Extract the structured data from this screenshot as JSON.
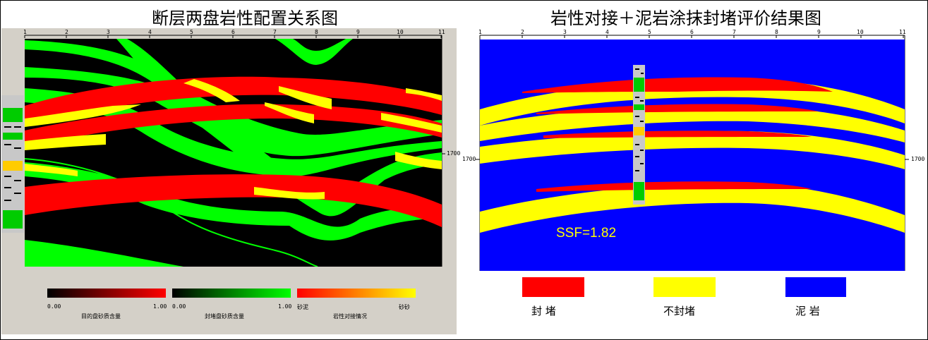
{
  "left_panel": {
    "title": "断层两盘岩性配置关系图",
    "x_ticks": [
      "1",
      "2",
      "3",
      "4",
      "5",
      "6",
      "7",
      "8",
      "9",
      "10",
      "11"
    ],
    "depth_label": "1700",
    "colorbars": [
      {
        "min_label": "0.00",
        "max_label": "1.00",
        "title": "目的盘砂质含量",
        "colors": [
          "#000000",
          "#ff0000"
        ]
      },
      {
        "min_label": "0.00",
        "max_label": "1.00",
        "title": "封堵盘砂质含量",
        "colors": [
          "#000000",
          "#00ff00"
        ]
      },
      {
        "min_label": "砂泥",
        "max_label": "砂砂",
        "title": "岩性对接情况",
        "colors": [
          "#ff0000",
          "#ffff00"
        ]
      }
    ]
  },
  "right_panel": {
    "title": "岩性对接＋泥岩涂抹封堵评价结果图",
    "x_ticks": [
      "1",
      "2",
      "3",
      "4",
      "5",
      "6",
      "7",
      "8",
      "9",
      "10",
      "11"
    ],
    "depth_label_left": "1700",
    "depth_label_right": "1700",
    "ssf_text": "SSF=1.82",
    "legend": [
      {
        "label": "封    堵",
        "color": "#ff0000"
      },
      {
        "label": "不封堵",
        "color": "#ffff00"
      },
      {
        "label": "泥    岩",
        "color": "#0000ff"
      }
    ]
  },
  "colors": {
    "sealed": "#ff0000",
    "unsealed": "#ffff00",
    "mudstone": "#0000ff",
    "sand_seal": "#00ff00",
    "background": "#000000"
  }
}
